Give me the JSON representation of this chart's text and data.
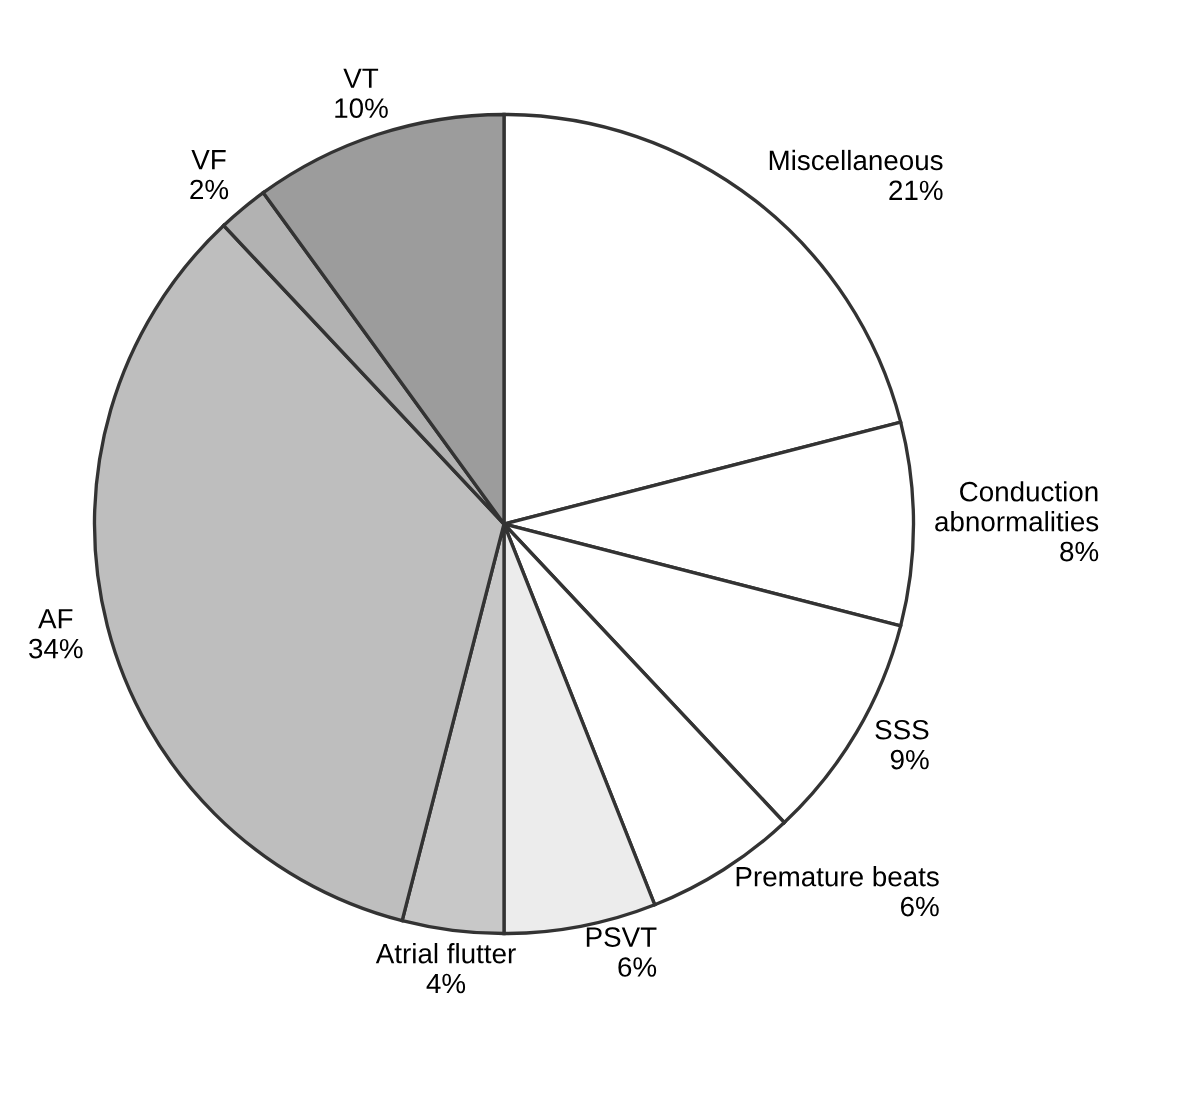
{
  "chart_data": {
    "type": "pie",
    "categories": [
      "Miscellaneous",
      "Conduction\nabnormalities",
      "SSS",
      "Premature beats",
      "PSVT",
      "Atrial flutter",
      "AF",
      "VF",
      "VT"
    ],
    "values": [
      21,
      8,
      9,
      6,
      6,
      4,
      34,
      2,
      10
    ],
    "value_labels": [
      "21%",
      "8%",
      "9%",
      "6%",
      "6%",
      "4%",
      "34%",
      "2%",
      "10%"
    ],
    "colors": [
      "#ffffff",
      "#ffffff",
      "#ffffff",
      "#ffffff",
      "#ececec",
      "#c8c8c8",
      "#bebebe",
      "#b2b2b2",
      "#9c9c9c"
    ]
  }
}
